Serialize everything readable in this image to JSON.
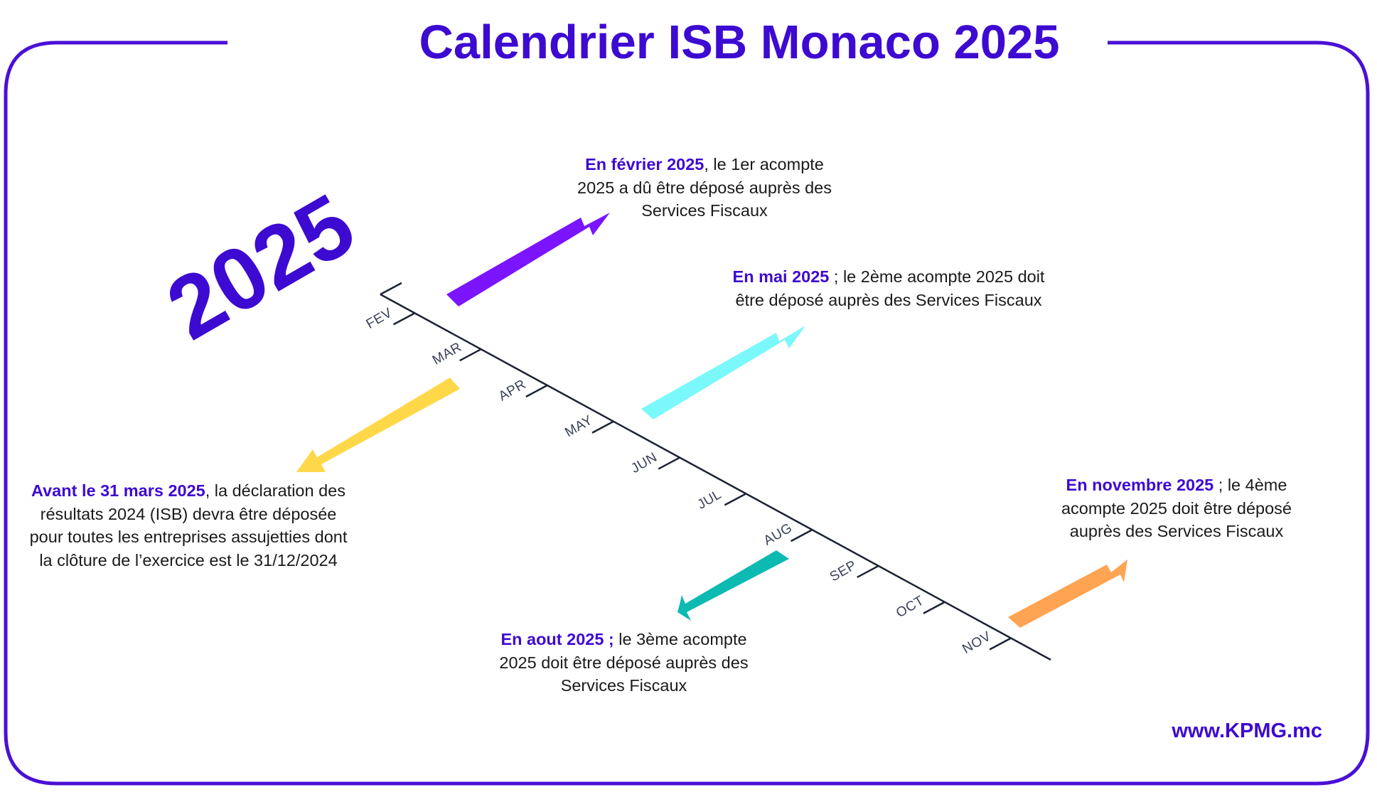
{
  "title": "Calendrier ISB Monaco 2025",
  "year": "2025",
  "website": "www.KPMG.mc",
  "colors": {
    "brand": "#3d0ad2",
    "frame": "#4a10d6",
    "arrow_feb": "#7b14ff",
    "arrow_mar": "#ffd84a",
    "arrow_may": "#7bf8fa",
    "arrow_aug": "#0dbab2",
    "arrow_nov": "#ffa452",
    "axis": "#1b2233"
  },
  "months": [
    "FEV",
    "MAR",
    "APR",
    "MAY",
    "JUN",
    "JUL",
    "AUG",
    "SEP",
    "OCT",
    "NOV"
  ],
  "events": [
    {
      "id": "feb",
      "highlight": "En février 2025",
      "text": ", le 1er acompte 2025 a dû être déposé auprès des Services Fiscaux",
      "arrow": "arrow-up-right"
    },
    {
      "id": "mar",
      "highlight": "Avant le 31 mars 2025",
      "text": ", la déclaration des résultats 2024 (ISB) devra être déposée pour toutes les entreprises assujetties dont la clôture de l’exercice est le 31/12/2024",
      "arrow": "arrow-down-left"
    },
    {
      "id": "may",
      "highlight": "En mai 2025",
      "text": " ; le 2ème acompte 2025 doit être déposé auprès des Services Fiscaux",
      "arrow": "arrow-up-right"
    },
    {
      "id": "aug",
      "highlight": "En aout 2025 ;",
      "text": " le 3ème acompte 2025 doit être déposé auprès des Services Fiscaux",
      "arrow": "arrow-down-left"
    },
    {
      "id": "nov",
      "highlight": "En novembre 2025",
      "text": " ; le 4ème acompte 2025 doit être déposé auprès des Services Fiscaux",
      "arrow": "arrow-up-right"
    }
  ]
}
